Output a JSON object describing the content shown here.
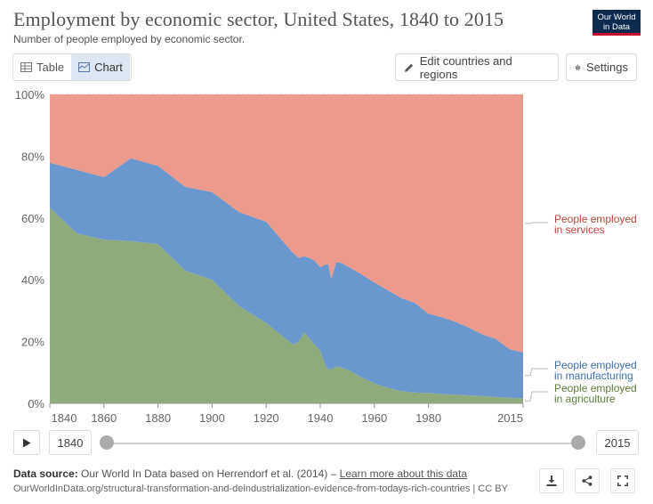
{
  "header": {
    "title": "Employment by economic sector, United States, 1840 to 2015",
    "subtitle": "Number of people employed by economic sector.",
    "logo_line1": "Our World",
    "logo_line2": "in Data"
  },
  "toolbar": {
    "table_label": "Table",
    "chart_label": "Chart",
    "edit_label": "Edit countries and regions",
    "settings_label": "Settings"
  },
  "timeline": {
    "start_year": "1840",
    "end_year": "2015"
  },
  "footer": {
    "source_label": "Data source:",
    "source_text": "Our World In Data based on Herrendorf et al. (2014) –",
    "learn_more": "Learn more about this data",
    "url": "OurWorldInData.org/structural-transformation-and-deindustrialization-evidence-from-todays-rich-countries | CC BY"
  },
  "colors": {
    "services": "#ec9a8b",
    "manufacturing": "#6b97cf",
    "agriculture": "#8fab7b",
    "services_label": "#c1443c",
    "manufacturing_label": "#3f6fb0",
    "agriculture_label": "#5e7d3a"
  },
  "chart_data": {
    "type": "area",
    "stacked": true,
    "relative": true,
    "ylim": [
      0,
      100
    ],
    "y_ticks": [
      "0%",
      "20%",
      "40%",
      "60%",
      "80%",
      "100%"
    ],
    "y_tick_values": [
      0,
      20,
      40,
      60,
      80,
      100
    ],
    "x_ticks": [
      "1840",
      "1860",
      "1880",
      "1900",
      "1920",
      "1940",
      "1960",
      "1980",
      "2015"
    ],
    "x_tick_values": [
      1840,
      1860,
      1880,
      1900,
      1920,
      1940,
      1960,
      1980,
      2015
    ],
    "xlim": [
      1840,
      2015
    ],
    "x": [
      1840,
      1850,
      1860,
      1870,
      1880,
      1890,
      1900,
      1910,
      1920,
      1930,
      1932,
      1934,
      1936,
      1938,
      1940,
      1942,
      1943,
      1944,
      1946,
      1948,
      1950,
      1955,
      1960,
      1965,
      1970,
      1975,
      1980,
      1985,
      1990,
      1995,
      2000,
      2005,
      2010,
      2015
    ],
    "series": [
      {
        "name": "People employed in agriculture",
        "values": [
          63.3,
          55,
          53,
          52.5,
          51.5,
          43,
          40,
          31.5,
          26,
          19,
          20,
          23,
          21,
          19,
          17,
          12,
          11,
          11,
          12,
          11.5,
          11,
          8.5,
          6.5,
          5,
          4,
          3.5,
          3.4,
          3,
          2.8,
          2.6,
          2.4,
          2.1,
          1.8,
          1.6
        ]
      },
      {
        "name": "People employed in manufacturing",
        "values": [
          14.6,
          20.6,
          20.2,
          26.8,
          25.4,
          27.1,
          28.4,
          30.4,
          32.8,
          29.6,
          27.1,
          24.6,
          26.1,
          27.1,
          27,
          33,
          34,
          29.3,
          33.8,
          33.9,
          33.4,
          33.4,
          32.6,
          31.6,
          30.1,
          29,
          25.6,
          24.9,
          23.6,
          21.9,
          19.9,
          18.7,
          15.7,
          14.9
        ]
      },
      {
        "name": "People employed in services",
        "values": [
          22.1,
          24.4,
          26.8,
          20.7,
          23.1,
          29.9,
          31.6,
          38.1,
          41.2,
          51.4,
          52.9,
          52.4,
          52.9,
          53.9,
          56,
          55,
          55,
          59.7,
          54.2,
          54.6,
          55.6,
          58.1,
          60.9,
          63.4,
          65.9,
          67.5,
          71,
          72.1,
          73.6,
          75.5,
          77.7,
          79.2,
          82.5,
          83.5
        ]
      }
    ],
    "legend_labels": {
      "services": [
        "People employed",
        "in services"
      ],
      "manufacturing": [
        "People employed",
        "in manufacturing"
      ],
      "agriculture": [
        "People employed",
        "in agriculture"
      ]
    }
  }
}
